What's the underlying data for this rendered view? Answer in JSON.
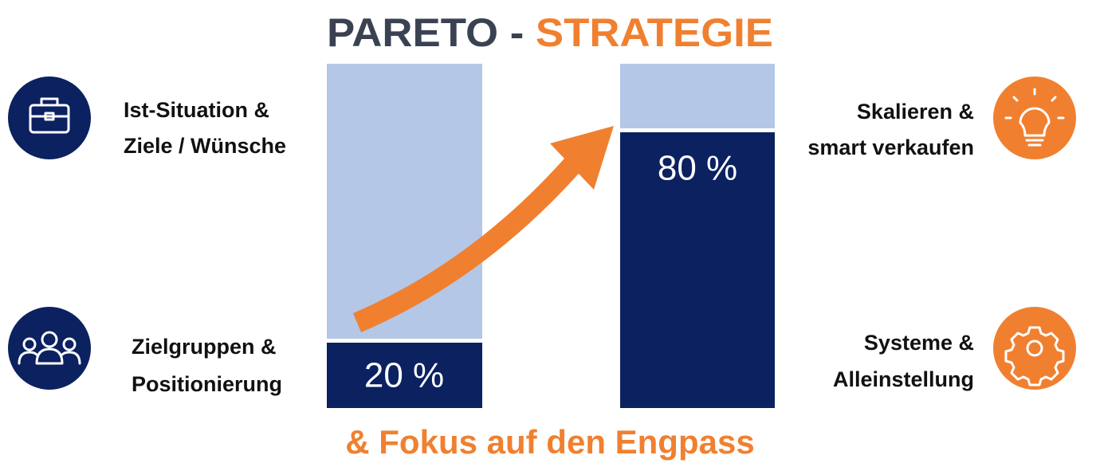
{
  "title": {
    "part1": "PARETO - ",
    "part2": "STRATEGIE"
  },
  "left_items": [
    {
      "line1": "Ist-Situation &",
      "line2": "Ziele / Wünsche"
    },
    {
      "line1": "Zielgruppen &",
      "line2": "Positionierung"
    }
  ],
  "right_items": [
    {
      "line1": "Skalieren &",
      "line2": "smart verkaufen"
    },
    {
      "line1": "Systeme &",
      "line2": "Alleinstellung"
    }
  ],
  "bars": [
    {
      "label": "20 %"
    },
    {
      "label": "80 %"
    }
  ],
  "footer": "& Fokus auf den Engpass"
}
